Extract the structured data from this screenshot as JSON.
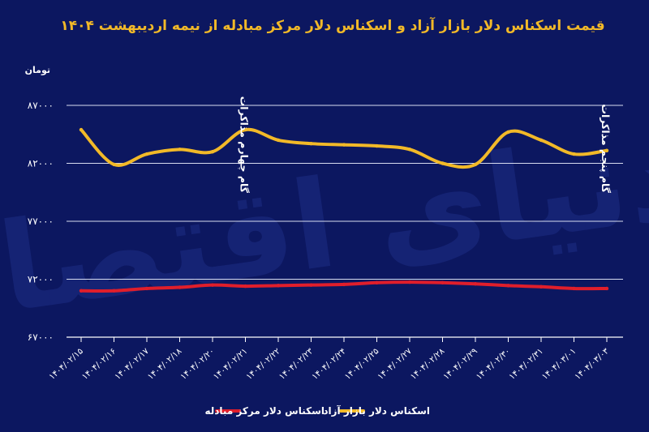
{
  "chart_data": {
    "type": "line",
    "title": "قیمت اسکناس دلار بازار آزاد و اسکناس دلار مرکز مبادله از نیمه اردیبهشت ۱۴۰۴",
    "ylabel": "تومان",
    "ylim": [
      67000,
      87000
    ],
    "yticks": [
      67000,
      72000,
      77000,
      82000,
      87000
    ],
    "ytick_labels": [
      "۶۷۰۰۰",
      "۷۲۰۰۰",
      "۷۷۰۰۰",
      "۸۲۰۰۰",
      "۸۷۰۰۰"
    ],
    "grid": true,
    "categories": [
      "۱۴۰۴/۰۲/۱۵",
      "۱۴۰۴/۰۲/۱۶",
      "۱۴۰۴/۰۲/۱۷",
      "۱۴۰۴/۰۲/۱۸",
      "۱۴۰۴/۰۲/۲۰",
      "۱۴۰۴/۰۲/۲۱",
      "۱۴۰۴/۰۲/۲۲",
      "۱۴۰۴/۰۲/۲۳",
      "۱۴۰۴/۰۲/۲۴",
      "۱۴۰۴/۰۲/۲۵",
      "۱۴۰۴/۰۲/۲۷",
      "۱۴۰۴/۰۲/۲۸",
      "۱۴۰۴/۰۲/۲۹",
      "۱۴۰۴/۰۲/۳۰",
      "۱۴۰۴/۰۲/۳۱",
      "۱۴۰۴/۰۳/۰۱",
      "۱۴۰۴/۰۳/۰۳"
    ],
    "series": [
      {
        "name": "اسکناس دلار بازار آزاد",
        "color": "#f2b928",
        "values": [
          84900,
          81900,
          82800,
          83200,
          83000,
          84900,
          84000,
          83700,
          83600,
          83500,
          83200,
          82000,
          81900,
          84700,
          84000,
          82800,
          83100
        ]
      },
      {
        "name": "اسکناس دلار مرکز مبادله",
        "color": "#e01e2b",
        "values": [
          71000,
          71000,
          71200,
          71300,
          71500,
          71400,
          71450,
          71500,
          71550,
          71700,
          71750,
          71700,
          71600,
          71450,
          71350,
          71200,
          71200
        ]
      }
    ],
    "annotations": [
      {
        "text": "گام چهارم مذاکرات",
        "at_category": 5
      },
      {
        "text": "گام پنجم مذاکرات",
        "at_category": 16
      }
    ],
    "watermark": "دنیای اقتصاد",
    "legend_position": "bottom-center"
  }
}
